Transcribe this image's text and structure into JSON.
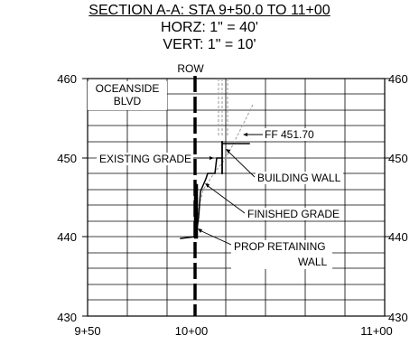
{
  "title": {
    "section": "SECTION A-A: STA 9+50.0 TO 11+00",
    "horizontal_scale": "HORZ: 1\" = 40'",
    "vertical_scale": "VERT: 1\" = 10'"
  },
  "axes": {
    "elevation_left": [
      "460",
      "450",
      "440",
      "430"
    ],
    "elevation_right": [
      "460",
      "450",
      "440",
      "430"
    ],
    "stations": [
      "9+50",
      "10+00",
      "11+00"
    ]
  },
  "labels": {
    "row": "ROW",
    "oceanside_line1": "OCEANSIDE",
    "oceanside_line2": "BLVD",
    "ff": "FF 451.70",
    "existing_grade": "EXISTING GRADE",
    "building_wall": "BUILDING WALL",
    "finished_grade": "FINISHED GRADE",
    "retaining_line1": "PROP RETAINING",
    "retaining_line2": "WALL"
  },
  "colors": {
    "line": "#000000",
    "hatch": "#9a9a9a",
    "grid": "#000000"
  }
}
